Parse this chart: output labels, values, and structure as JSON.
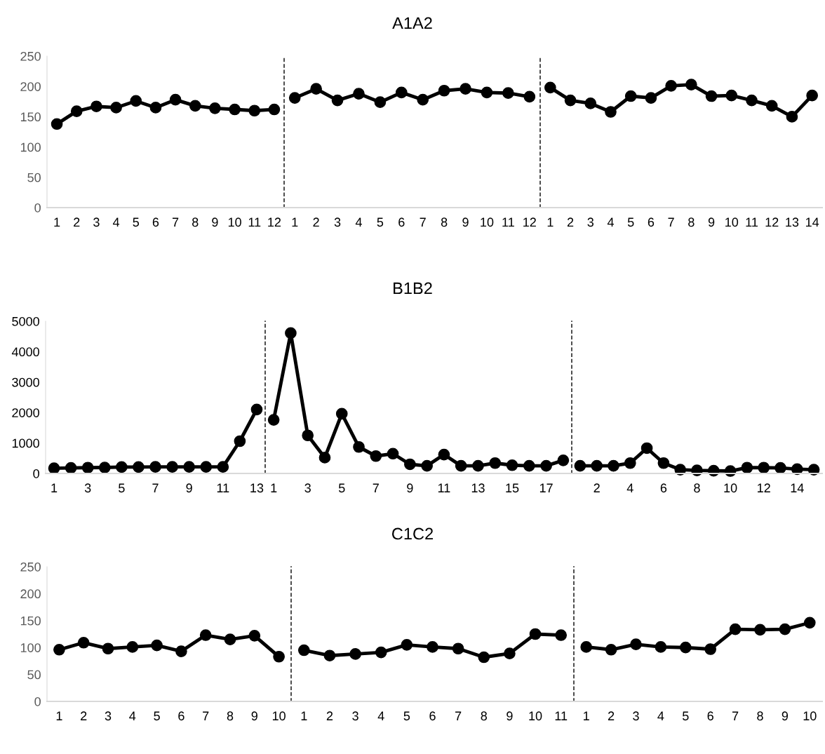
{
  "chart_data": [
    {
      "type": "line",
      "categories": [
        "1",
        "2",
        "3",
        "4",
        "5",
        "6",
        "7",
        "8",
        "9",
        "10",
        "11",
        "12"
      ],
      "values": [
        138,
        159,
        167,
        165,
        176,
        165,
        178,
        168,
        164,
        162,
        160,
        162
      ],
      "color": "#000000",
      "marker": "circle",
      "ylim": [
        0,
        250
      ],
      "yticks": [
        0,
        50,
        100,
        150,
        200,
        250
      ]
    },
    {
      "type": "line",
      "title": "A1A2",
      "categories": [
        "1",
        "2",
        "3",
        "4",
        "5",
        "6",
        "7",
        "8",
        "9",
        "10",
        "11",
        "12"
      ],
      "values": [
        181,
        196,
        177,
        188,
        174,
        190,
        178,
        193,
        196,
        190,
        189,
        183
      ],
      "color": "#000000",
      "marker": "circle",
      "ylim": [
        0,
        250
      ],
      "tick_labels": "x"
    },
    {
      "type": "line",
      "categories": [
        "1",
        "2",
        "3",
        "4",
        "5",
        "6",
        "7",
        "8",
        "9",
        "10",
        "11",
        "12",
        "13",
        "14"
      ],
      "values": [
        198,
        177,
        172,
        158,
        184,
        181,
        201,
        203,
        184,
        185,
        177,
        168,
        150,
        185
      ],
      "color": "#000000",
      "marker": "circle",
      "ylim": [
        0,
        250
      ],
      "tick_labels": "x"
    },
    {
      "type": "line",
      "categories": [
        "1",
        null,
        "3",
        null,
        "5",
        null,
        "7",
        null,
        "9",
        null,
        "11",
        null,
        "13"
      ],
      "values": [
        170,
        180,
        190,
        195,
        210,
        210,
        215,
        215,
        215,
        215,
        215,
        1060,
        2100
      ],
      "color": "#000000",
      "marker": "circle",
      "ylim": [
        0,
        5000
      ],
      "yticks": [
        0,
        1000,
        2000,
        3000,
        4000,
        5000
      ]
    },
    {
      "type": "line",
      "title": "B1B2",
      "categories": [
        "1",
        null,
        "3",
        null,
        "5",
        null,
        "7",
        null,
        "9",
        null,
        "11",
        null,
        "13",
        null,
        "15",
        null,
        "17",
        null
      ],
      "values": [
        1760,
        4610,
        1250,
        520,
        1960,
        870,
        570,
        650,
        300,
        250,
        620,
        250,
        250,
        340,
        270,
        250,
        250,
        430
      ],
      "color": "#000000",
      "marker": "circle",
      "ylim": [
        0,
        5000
      ],
      "tick_labels": "x"
    },
    {
      "type": "line",
      "categories": [
        null,
        "2",
        null,
        "4",
        null,
        "6",
        null,
        "8",
        null,
        "10",
        null,
        "12",
        null,
        "14",
        null
      ],
      "values": [
        250,
        250,
        250,
        340,
        830,
        340,
        125,
        100,
        90,
        80,
        190,
        190,
        180,
        140,
        125
      ],
      "color": "#000000",
      "marker": "circle",
      "ylim": [
        0,
        5000
      ],
      "tick_labels": "x"
    },
    {
      "type": "line",
      "categories": [
        "1",
        "2",
        "3",
        "4",
        "5",
        "6",
        "7",
        "8",
        "9",
        "10"
      ],
      "values": [
        96,
        109,
        98,
        101,
        104,
        93,
        123,
        115,
        122,
        83
      ],
      "color": "#000000",
      "marker": "circle",
      "ylim": [
        0,
        250
      ],
      "yticks": [
        0,
        50,
        100,
        150,
        200,
        250
      ]
    },
    {
      "type": "line",
      "title": "C1C2",
      "categories": [
        "1",
        "2",
        "3",
        "4",
        "5",
        "6",
        "7",
        "8",
        "9",
        "10",
        "11"
      ],
      "values": [
        95,
        85,
        88,
        91,
        105,
        101,
        98,
        82,
        89,
        125,
        123
      ],
      "color": "#000000",
      "marker": "circle",
      "ylim": [
        0,
        250
      ],
      "tick_labels": "x"
    },
    {
      "type": "line",
      "categories": [
        "1",
        "2",
        "3",
        "4",
        "5",
        "6",
        "7",
        "8",
        "9",
        "10"
      ],
      "values": [
        101,
        96,
        106,
        101,
        100,
        97,
        134,
        133,
        134,
        146
      ],
      "color": "#000000",
      "marker": "circle",
      "ylim": [
        0,
        250
      ],
      "tick_labels": "x"
    }
  ]
}
